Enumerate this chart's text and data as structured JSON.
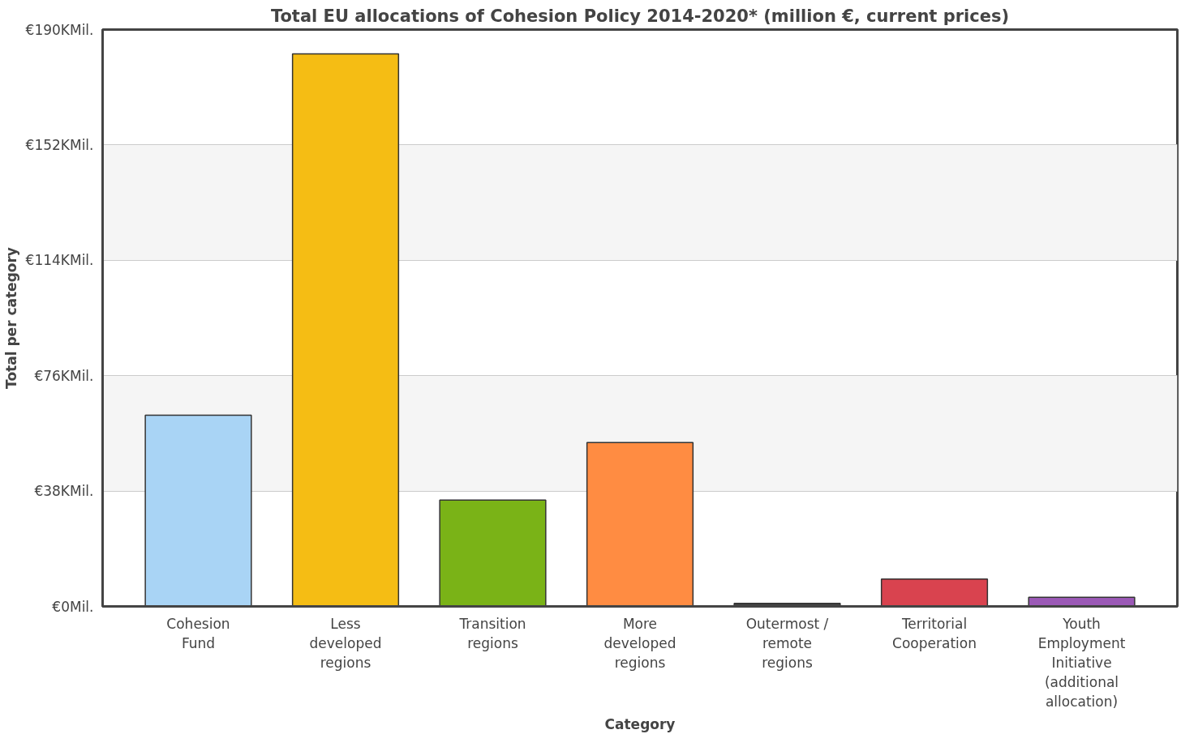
{
  "chart_data": {
    "type": "bar",
    "title": "Total EU allocations of Cohesion Policy 2014-2020* (million €, current prices)",
    "xlabel": "Category",
    "ylabel": "Total per category",
    "categories": [
      "Cohesion Fund",
      "Less developed regions",
      "Transition regions",
      "More developed regions",
      "Outermost / remote regions",
      "Territorial Cooperation",
      "Youth Employment Initiative (additional allocation)"
    ],
    "values": [
      63,
      182,
      35,
      54,
      1,
      9,
      3
    ],
    "colors": [
      "#a9d4f5",
      "#f5bd14",
      "#7ab317",
      "#ff8c42",
      "#444444",
      "#d9434f",
      "#9b59b6"
    ],
    "ylim": [
      0,
      190
    ],
    "yticks": [
      {
        "value": 0,
        "label": "€0Mil."
      },
      {
        "value": 38,
        "label": "€38KMil."
      },
      {
        "value": 76,
        "label": "€76KMil."
      },
      {
        "value": 114,
        "label": "€114KMil."
      },
      {
        "value": 152,
        "label": "€152KMil."
      },
      {
        "value": 190,
        "label": "€190KMil."
      }
    ],
    "grid": "y"
  }
}
